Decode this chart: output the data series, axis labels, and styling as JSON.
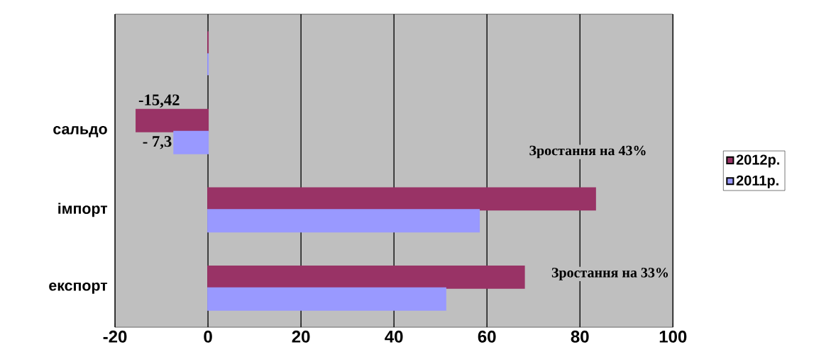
{
  "chart_data": {
    "type": "bar",
    "orientation": "horizontal",
    "categories": [
      null,
      "сальдо",
      "імпорт",
      "експорт"
    ],
    "series": [
      {
        "name": "2012р.",
        "color": "#993366",
        "values": [
          0,
          -15.42,
          83.3,
          68
        ],
        "value_labels": [
          null,
          "-15,42",
          null,
          null
        ]
      },
      {
        "name": "2011р.",
        "color": "#9999ff",
        "values": [
          0,
          -7.3,
          58.3,
          51.1
        ],
        "value_labels": [
          null,
          "- 7,3",
          null,
          null
        ]
      }
    ],
    "xlim": [
      -20,
      100
    ],
    "xticks": [
      -20,
      0,
      20,
      40,
      60,
      80,
      100
    ],
    "grid": "x",
    "legend": "right",
    "annotations": [
      "Зростання на 43%",
      "Зростання на 33%"
    ]
  }
}
